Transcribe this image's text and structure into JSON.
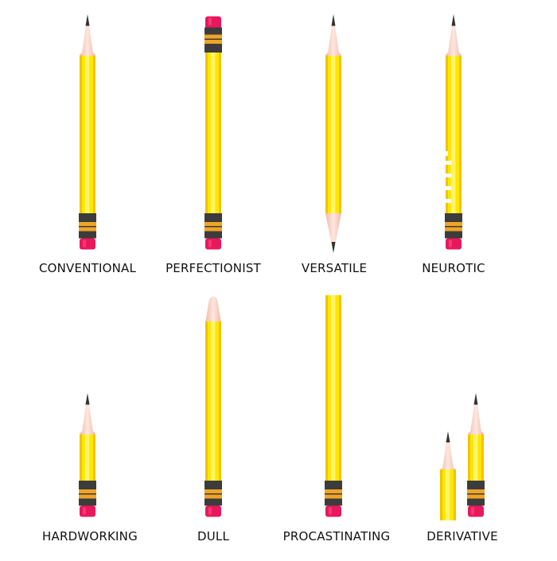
{
  "colors": {
    "body": "#ffe600",
    "body_highlight": "#fff46a",
    "body_shade": "#f0c400",
    "wood": "#f8d2c6",
    "lead": "#333333",
    "band_dark": "#3c3c3c",
    "band_gold": "#f0a426",
    "eraser": "#e8185c"
  },
  "pencils": [
    {
      "id": "conventional",
      "label": "CONVENTIONAL",
      "style": "sharpened-with-eraser",
      "length": "full",
      "icons": [
        "pencil-icon"
      ]
    },
    {
      "id": "perfectionist",
      "label": "PERFECTIONIST",
      "style": "erasers-on-both-ends",
      "length": "full",
      "icons": [
        "pencil-icon"
      ]
    },
    {
      "id": "versatile",
      "label": "VERSATILE",
      "style": "sharpened-on-both-ends",
      "length": "full",
      "icons": [
        "pencil-icon"
      ]
    },
    {
      "id": "neurotic",
      "label": "NEUROTIC",
      "style": "bitten-with-notches",
      "length": "full",
      "icons": [
        "pencil-icon"
      ]
    },
    {
      "id": "hardworking",
      "label": "HARDWORKING",
      "style": "worn-short",
      "length": "short",
      "icons": [
        "pencil-icon"
      ]
    },
    {
      "id": "dull",
      "label": "DULL",
      "style": "blunt-tip",
      "length": "full",
      "icons": [
        "pencil-icon"
      ]
    },
    {
      "id": "procastinating",
      "label": "PROCASTINATING",
      "style": "unsharpened",
      "length": "full",
      "icons": [
        "pencil-icon"
      ]
    },
    {
      "id": "derivative",
      "label": "DERIVATIVE",
      "style": "pair-of-short-pencils",
      "length": "short",
      "icons": [
        "pencil-icon",
        "pencil-icon"
      ]
    }
  ]
}
